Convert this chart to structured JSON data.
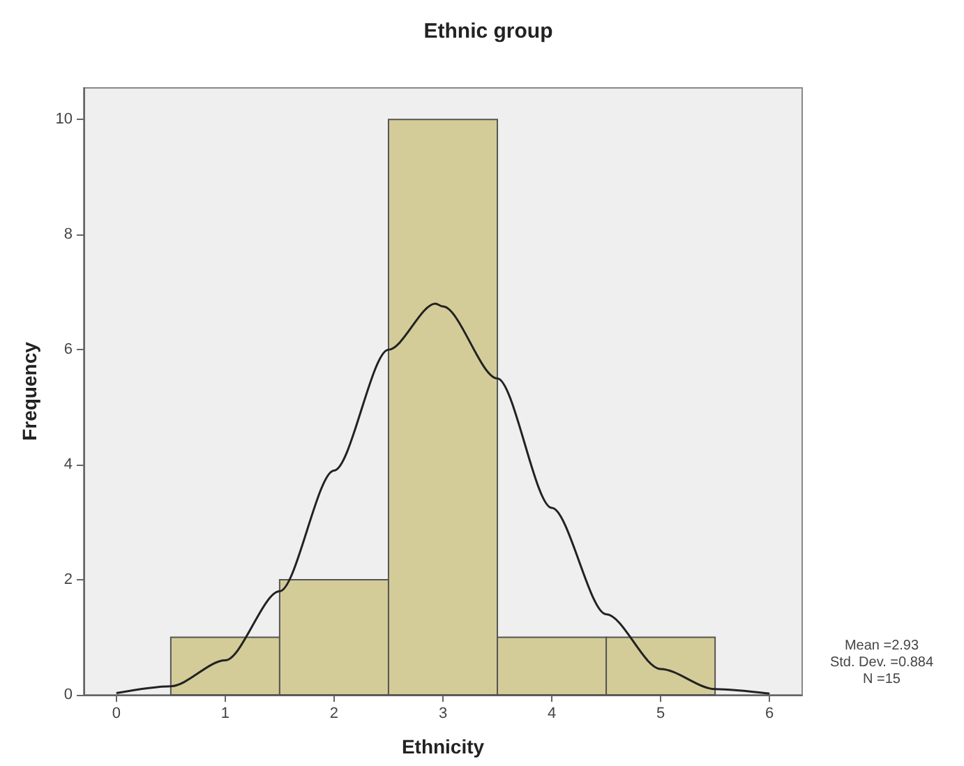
{
  "chart_data": {
    "type": "histogram",
    "title": "Ethnic group",
    "xlabel": "Ethnicity",
    "ylabel": "Frequency",
    "bins": [
      0.5,
      1.5,
      2.5,
      3.5,
      4.5,
      5.5
    ],
    "values": [
      1,
      2,
      10,
      1,
      1
    ],
    "color": "#d4cc98",
    "series": [
      {
        "type": "line",
        "color": "#222222",
        "x": [
          0,
          0.5,
          1,
          1.5,
          2,
          2.5,
          2.93,
          3,
          3.5,
          4,
          4.5,
          5,
          5.5,
          6
        ],
        "values": [
          0.03,
          0.15,
          0.6,
          1.8,
          3.9,
          6.0,
          6.8,
          6.75,
          5.5,
          3.25,
          1.4,
          0.45,
          0.1,
          0.02
        ]
      }
    ],
    "xlim": [
      -0.3,
      6.3
    ],
    "xticks": [
      0,
      1,
      2,
      3,
      4,
      5,
      6
    ],
    "ylim": [
      0,
      10.55
    ],
    "yticks": [
      0,
      2,
      4,
      6,
      8,
      10
    ],
    "grid": false,
    "legend": false,
    "marker": "none",
    "line_style": "solid",
    "annotations": [
      "Mean =2.93",
      "Std. Dev. =0.884",
      "N =15"
    ]
  }
}
